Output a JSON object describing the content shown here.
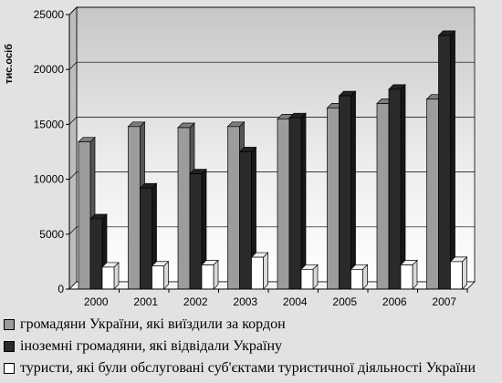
{
  "chart_data": {
    "type": "bar",
    "ylabel": "тис.осіб",
    "ylim": [
      0,
      25000
    ],
    "yticks": [
      0,
      5000,
      10000,
      15000,
      20000,
      25000
    ],
    "grid": true,
    "categories": [
      "2000",
      "2001",
      "2002",
      "2003",
      "2004",
      "2005",
      "2006",
      "2007"
    ],
    "series": [
      {
        "name": "громадяни України, які виїздили за кордон",
        "color": "#9c9c9c",
        "values": [
          13400,
          14800,
          14700,
          14800,
          15500,
          16500,
          16900,
          17300
        ]
      },
      {
        "name": "іноземні громадяни, які відвідали Україну",
        "color": "#2a2a2a",
        "values": [
          6400,
          9200,
          10500,
          12500,
          15600,
          17600,
          18200,
          23100
        ]
      },
      {
        "name": "туристи, які були обслуговані суб'єктами туристичної діяльності України",
        "color": "#ffffff",
        "values": [
          2000,
          2100,
          2200,
          2900,
          1800,
          1800,
          2200,
          2500
        ]
      }
    ],
    "legend_position": "bottom"
  }
}
